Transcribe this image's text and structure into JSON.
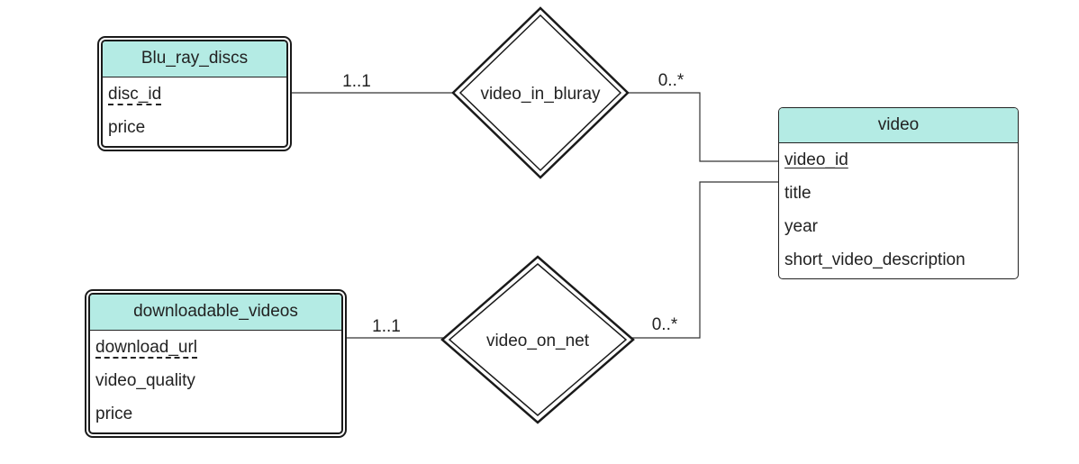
{
  "entities": {
    "bluray": {
      "name": "Blu_ray_discs",
      "attributes": [
        "disc_id",
        "price"
      ]
    },
    "download": {
      "name": "downloadable_videos",
      "attributes": [
        "download_url",
        "video_quality",
        "price"
      ]
    },
    "video": {
      "name": "video",
      "attributes": [
        "video_id",
        "title",
        "year",
        "short_video_description"
      ]
    }
  },
  "relationships": {
    "in_bluray": {
      "name": "video_in_bluray",
      "left_cardinality": "1..1",
      "right_cardinality": "0..*"
    },
    "on_net": {
      "name": "video_on_net",
      "left_cardinality": "1..1",
      "right_cardinality": "0..*"
    }
  },
  "colors": {
    "header_fill": "#b4ebe4",
    "line": "#222222"
  }
}
